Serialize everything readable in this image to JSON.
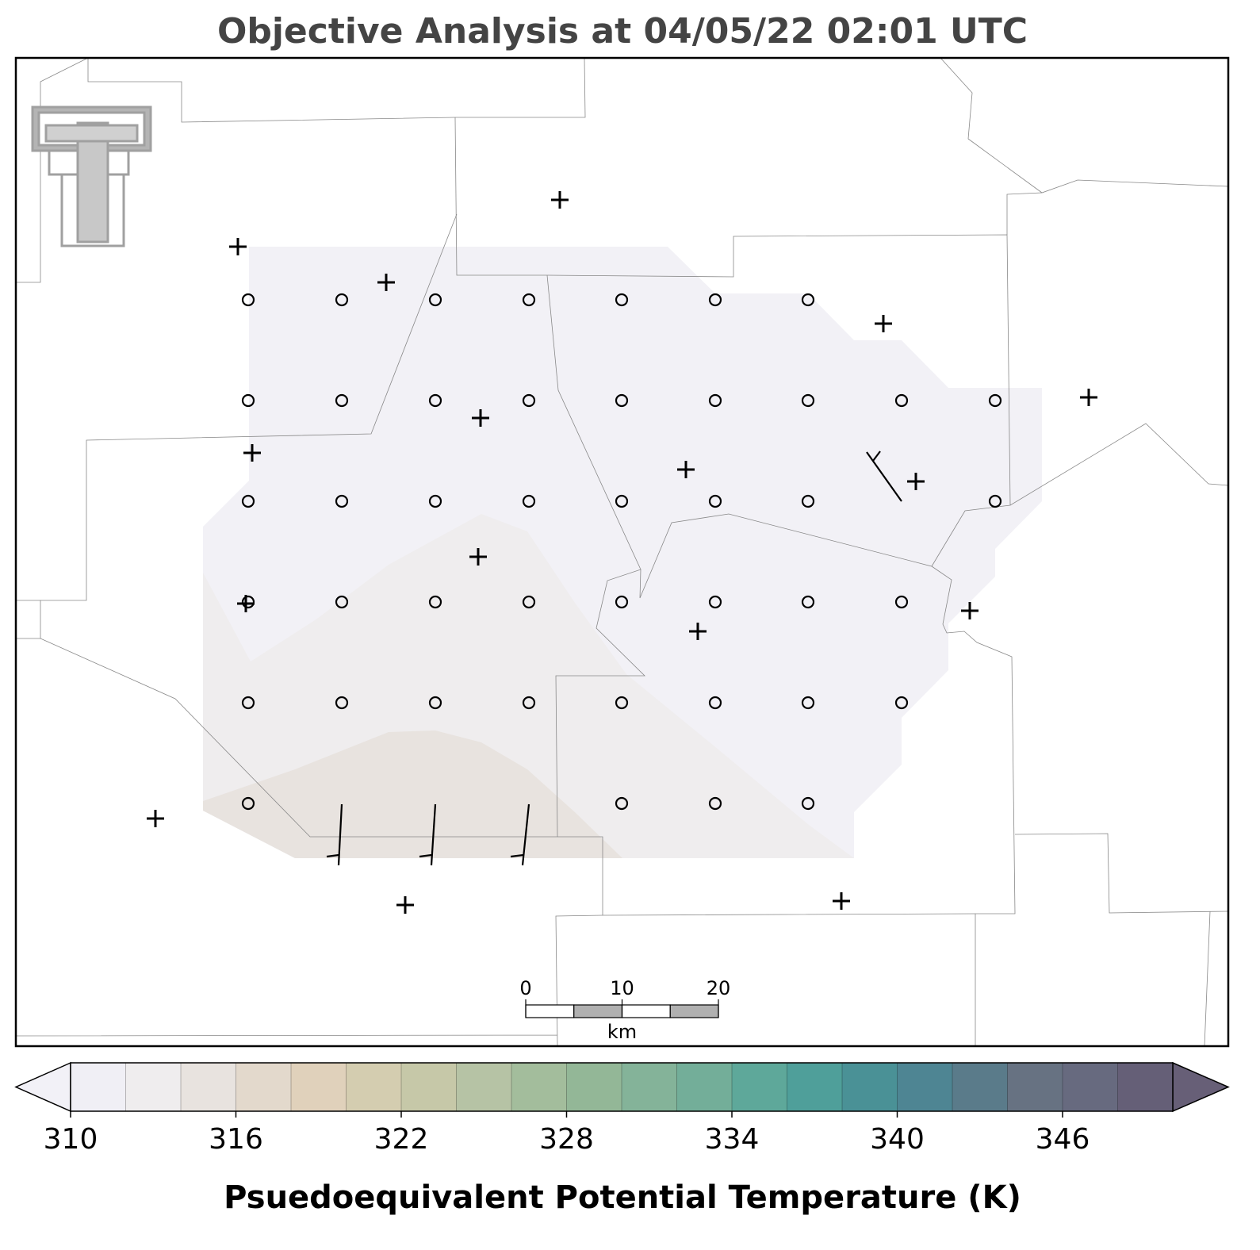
{
  "title": "Objective Analysis at 04/05/22 02:01 UTC",
  "colorbar": {
    "label": "Psuedoequivalent Potential Temperature (K)",
    "lim": [
      310,
      350
    ],
    "ticks": [
      310,
      316,
      322,
      328,
      334,
      340,
      346
    ],
    "colors": [
      "#f0eff5",
      "#efedee",
      "#e8e3df",
      "#e3d9cc",
      "#e0d1bb",
      "#d4cdb0",
      "#c6c8a8",
      "#b6c3a5",
      "#a3bd9c",
      "#93b797",
      "#84b399",
      "#73ae99",
      "#5ea89a",
      "#4f9f9a",
      "#4a9196",
      "#4e8593",
      "#5a7b8a",
      "#677282",
      "#676a7f",
      "#655f77"
    ],
    "under_color": "#f2f1f7",
    "over_color": "#675f77"
  },
  "scale_bar": {
    "ticks": [
      0,
      10,
      20
    ],
    "unit": "km"
  }
}
